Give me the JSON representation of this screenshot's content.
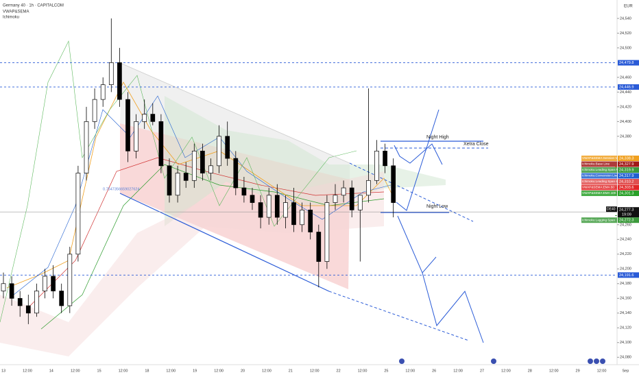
{
  "header": {
    "title": "Germany 40 · 1h · CAPITALCOM",
    "indicators": [
      "VWAP&SEMA",
      "Ichimoku"
    ],
    "currency": "EUR"
  },
  "chart_data": {
    "type": "candlestick",
    "x_labels": [
      "13",
      "12:00",
      "14",
      "12:00",
      "15",
      "12:00",
      "18",
      "12:00",
      "19",
      "12:00",
      "20",
      "12:00",
      "21",
      "12:00",
      "22",
      "12:00",
      "25",
      "12:00",
      "26",
      "12:00",
      "27",
      "12:00",
      "28",
      "12:00",
      "29",
      "12:00",
      "Sep"
    ],
    "open": [
      24170,
      24180,
      24160,
      24150,
      24140,
      24170,
      24190,
      24170,
      24150,
      24220,
      24330,
      24400,
      24430,
      24450,
      24480,
      24430,
      24360,
      24400,
      24410,
      24400,
      24340,
      24300,
      24330,
      24320,
      24360,
      24330,
      24340,
      24380,
      24350,
      24310,
      24300,
      24290,
      24270,
      24300,
      24270,
      24290,
      24260,
      24280,
      24250,
      24210,
      24290,
      24300,
      24310,
      24280,
      24300,
      24320,
      24360,
      24340
    ],
    "high": [
      24195,
      24190,
      24170,
      24165,
      24180,
      24200,
      24205,
      24180,
      24230,
      24340,
      24420,
      24445,
      24460,
      24540,
      24500,
      24440,
      24410,
      24430,
      24425,
      24410,
      24350,
      24340,
      24345,
      24370,
      24370,
      24350,
      24395,
      24400,
      24360,
      24325,
      24310,
      24300,
      24310,
      24315,
      24300,
      24310,
      24290,
      24290,
      24260,
      24300,
      24315,
      24320,
      24320,
      24300,
      24445,
      24375,
      24370,
      24350
    ],
    "low": [
      24160,
      24150,
      24135,
      24125,
      24135,
      24160,
      24160,
      24140,
      24140,
      24210,
      24320,
      24390,
      24420,
      24440,
      24420,
      24345,
      24350,
      24390,
      24395,
      24330,
      24290,
      24290,
      24310,
      24310,
      24320,
      24320,
      24330,
      24340,
      24300,
      24290,
      24280,
      24255,
      24260,
      24260,
      24255,
      24250,
      24250,
      24240,
      24175,
      24200,
      24280,
      24290,
      24270,
      24210,
      24290,
      24315,
      24330,
      24270
    ],
    "close": [
      24180,
      24160,
      24150,
      24140,
      24170,
      24190,
      24170,
      24150,
      24220,
      24330,
      24400,
      24430,
      24450,
      24480,
      24430,
      24360,
      24400,
      24410,
      24400,
      24340,
      24300,
      24330,
      24320,
      24360,
      24330,
      24340,
      24380,
      24350,
      24310,
      24300,
      24290,
      24270,
      24300,
      24270,
      24290,
      24260,
      24280,
      24250,
      24210,
      24290,
      24300,
      24310,
      24280,
      24300,
      24320,
      24360,
      24340,
      24290
    ],
    "up_color": "#ffffff",
    "down_color": "#000000",
    "ylim": [
      24070,
      24565
    ],
    "yticks": [
      {
        "value": 24080,
        "label": "24,080"
      },
      {
        "value": 24100,
        "label": "24,100"
      },
      {
        "value": 24120,
        "label": "24,120"
      },
      {
        "value": 24140,
        "label": "24,140"
      },
      {
        "value": 24160,
        "label": "24,160"
      },
      {
        "value": 24180,
        "label": "24,180"
      },
      {
        "value": 24200,
        "label": "24,200"
      },
      {
        "value": 24220,
        "label": "24,220"
      },
      {
        "value": 24240,
        "label": "24,240"
      },
      {
        "value": 24260,
        "label": "24,260"
      },
      {
        "value": 24280,
        "label": "24,280"
      },
      {
        "value": 24380,
        "label": "24,380"
      },
      {
        "value": 24400,
        "label": "24,400"
      },
      {
        "value": 24420,
        "label": "24,420"
      },
      {
        "value": 24440,
        "label": "24,440"
      },
      {
        "value": 24460,
        "label": "24,460"
      },
      {
        "value": 24500,
        "label": "24,500"
      },
      {
        "value": 24520,
        "label": "24,520"
      },
      {
        "value": 24540,
        "label": "24,540"
      }
    ],
    "levels": [
      {
        "value": 24479.8,
        "label": "24,479.8"
      },
      {
        "value": 24446.9,
        "label": "24,446.9"
      },
      {
        "value": 24191.6,
        "label": "24,191.6"
      }
    ],
    "indicators": [
      {
        "name": "VWAP&SEMA:Session VWAP",
        "value": 24338.3,
        "label": "24,338.3",
        "color": "#f0a020"
      },
      {
        "name": "Ichimoku:Base Line",
        "value": 24327.9,
        "label": "24,327.9",
        "color": "#a01818"
      },
      {
        "name": "Ichimoku:Leading Span A",
        "value": 24319.9,
        "label": "24,319.9",
        "color": "#3c9a3c"
      },
      {
        "name": "Ichimoku:Conversion Line",
        "value": 24317.9,
        "label": "24,317.9",
        "color": "#2060d0"
      },
      {
        "name": "Ichimoku:Leading Span B",
        "value": 24310.2,
        "label": "24,310.2",
        "color": "#e05050"
      },
      {
        "name": "VWAP&SEMA:EMA 50",
        "value": 24303.6,
        "label": "24,303.6",
        "color": "#e02828"
      },
      {
        "name": "VWAP&SEMA:EMA 100",
        "value": 24301.3,
        "label": "24,301.3",
        "color": "#28a028"
      }
    ],
    "last_price": {
      "symbol": "DE40",
      "value": 24277.3,
      "label": "24,277.3",
      "countdown": "19:09"
    },
    "lagging": {
      "name": "Ichimoku:Lagging Span",
      "value": 24272.3,
      "label": "24,272.3",
      "color": "#3c9a3c"
    },
    "annotations": {
      "night_high": "Night High",
      "xetra_close": "Xetra Close",
      "night_low": "Night Low",
      "fib": "0.7547356659027624"
    }
  }
}
